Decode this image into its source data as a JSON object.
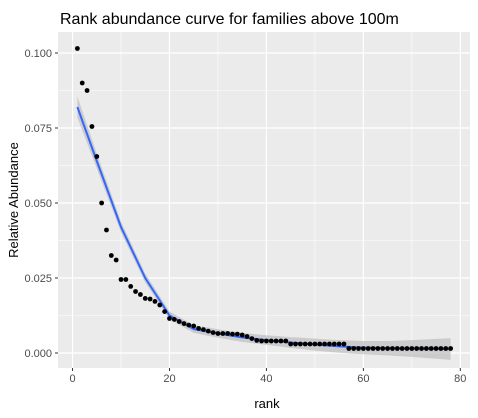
{
  "chart_data": {
    "type": "scatter",
    "title": "Rank abundance curve for families above 100m",
    "xlabel": "rank",
    "ylabel": "Relative Abundance",
    "xlim": [
      -3,
      82
    ],
    "ylim": [
      -0.005,
      0.107
    ],
    "x_ticks": [
      0,
      20,
      40,
      60,
      80
    ],
    "y_ticks": [
      0.0,
      0.025,
      0.05,
      0.075,
      0.1
    ],
    "x_tick_labels": [
      "0",
      "20",
      "40",
      "60",
      "80"
    ],
    "y_tick_labels": [
      "0.000",
      "0.025",
      "0.050",
      "0.075",
      "0.100"
    ],
    "grid": true,
    "legend": "none",
    "points": {
      "x": [
        1,
        2,
        3,
        4,
        5,
        6,
        7,
        8,
        9,
        10,
        11,
        12,
        13,
        14,
        15,
        16,
        17,
        18,
        19,
        20,
        21,
        22,
        23,
        24,
        25,
        26,
        27,
        28,
        29,
        30,
        31,
        32,
        33,
        34,
        35,
        36,
        37,
        38,
        39,
        40,
        41,
        42,
        43,
        44,
        45,
        46,
        47,
        48,
        49,
        50,
        51,
        52,
        53,
        54,
        55,
        56,
        57,
        58,
        59,
        60,
        61,
        62,
        63,
        64,
        65,
        66,
        67,
        68,
        69,
        70,
        71,
        72,
        73,
        74,
        75,
        76,
        77,
        78
      ],
      "y": [
        0.1015,
        0.09,
        0.0875,
        0.0755,
        0.0655,
        0.05,
        0.041,
        0.0325,
        0.031,
        0.0245,
        0.0245,
        0.0222,
        0.0205,
        0.0195,
        0.0182,
        0.018,
        0.0172,
        0.016,
        0.0138,
        0.0115,
        0.0112,
        0.0105,
        0.0098,
        0.0093,
        0.009,
        0.0082,
        0.0078,
        0.0073,
        0.0068,
        0.0065,
        0.0065,
        0.0065,
        0.0063,
        0.0063,
        0.006,
        0.0055,
        0.0048,
        0.0042,
        0.004,
        0.004,
        0.004,
        0.004,
        0.004,
        0.004,
        0.003,
        0.003,
        0.003,
        0.003,
        0.003,
        0.003,
        0.003,
        0.003,
        0.003,
        0.003,
        0.003,
        0.003,
        0.0015,
        0.0015,
        0.0015,
        0.0015,
        0.0015,
        0.0015,
        0.0015,
        0.0015,
        0.0015,
        0.0015,
        0.0015,
        0.0015,
        0.0015,
        0.0015,
        0.0015,
        0.0015,
        0.0015,
        0.0015,
        0.0015,
        0.0015,
        0.0015,
        0.0015
      ]
    },
    "smooth": {
      "color": "#3366ff",
      "x": [
        1,
        5,
        10,
        15,
        20,
        25,
        30,
        35,
        40,
        45,
        50,
        55,
        60,
        65,
        70,
        75,
        78
      ],
      "y": [
        0.082,
        0.064,
        0.042,
        0.025,
        0.0125,
        0.008,
        0.0065,
        0.0052,
        0.0043,
        0.0035,
        0.0028,
        0.0022,
        0.0018,
        0.0016,
        0.0015,
        0.0014,
        0.0013
      ],
      "se": [
        0.0035,
        0.0025,
        0.0018,
        0.0015,
        0.0013,
        0.0013,
        0.0014,
        0.0015,
        0.0016,
        0.0018,
        0.002,
        0.0021,
        0.0022,
        0.0024,
        0.0028,
        0.0033,
        0.0036
      ]
    },
    "colors": {
      "panel": "#ebebeb",
      "grid": "#ffffff",
      "points": "#000000",
      "ribbon": "#bdbdbd"
    }
  }
}
